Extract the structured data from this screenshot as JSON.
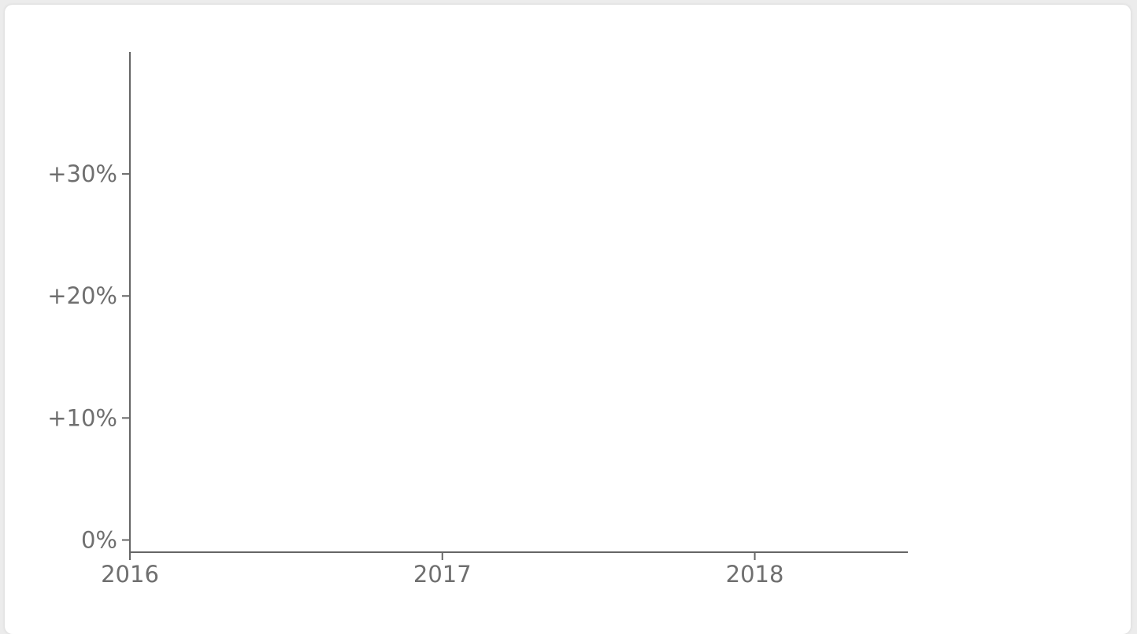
{
  "chart_data": {
    "type": "line",
    "title": "",
    "xlabel": "",
    "ylabel": "",
    "x_ticks": [
      {
        "value": 2016,
        "label": "2016"
      },
      {
        "value": 2017,
        "label": "2017"
      },
      {
        "value": 2018,
        "label": "2018"
      }
    ],
    "y_ticks": [
      {
        "value": 0,
        "label": "0%"
      },
      {
        "value": 10,
        "label": "+10%"
      },
      {
        "value": 20,
        "label": "+20%"
      },
      {
        "value": 30,
        "label": "+30%"
      }
    ],
    "xlim": [
      2016,
      2018.49
    ],
    "ylim": [
      -1,
      40
    ],
    "series": [],
    "grid": false,
    "colors": {
      "axis": "#666666",
      "tick_text": "#6f6f6f",
      "background": "#ffffff"
    }
  }
}
